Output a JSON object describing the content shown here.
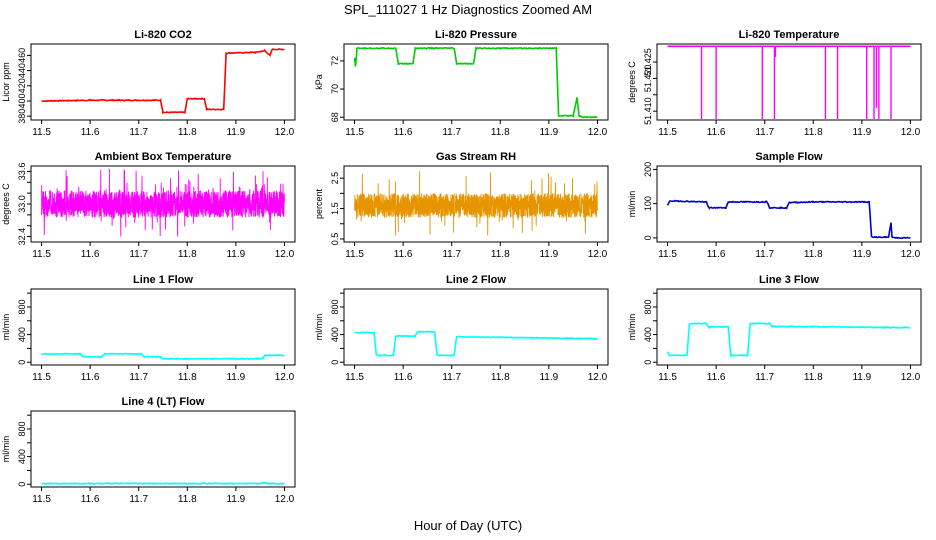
{
  "figure": {
    "title": "SPL_111027  1 Hz Diagnostics Zoomed AM",
    "xlabel": "Hour of Day (UTC)"
  },
  "chart_data": [
    {
      "type": "line",
      "title": "Li-820 CO2",
      "ylabel": "Licor ppm",
      "color": "#ff0000",
      "xlim": [
        11.5,
        12.0
      ],
      "ylim": [
        375,
        475
      ],
      "x_ticks": [
        11.5,
        11.6,
        11.7,
        11.8,
        11.9,
        12.0
      ],
      "y_ticks": [
        380,
        400,
        420,
        440,
        460
      ],
      "series": [
        {
          "points": [
            [
              11.5,
              400
            ],
            [
              11.6,
              401
            ],
            [
              11.66,
              401
            ],
            [
              11.745,
              401
            ],
            [
              11.75,
              385
            ],
            [
              11.795,
              385
            ],
            [
              11.8,
              403
            ],
            [
              11.835,
              403
            ],
            [
              11.84,
              389
            ],
            [
              11.875,
              389
            ],
            [
              11.88,
              463
            ],
            [
              11.94,
              464
            ],
            [
              11.96,
              466
            ],
            [
              11.97,
              460
            ],
            [
              11.975,
              468
            ],
            [
              12.0,
              468
            ]
          ]
        }
      ]
    },
    {
      "type": "line",
      "title": "Li-820 Pressure",
      "ylabel": "kPa",
      "color": "#00cc00",
      "xlim": [
        11.5,
        12.0
      ],
      "ylim": [
        67.8,
        73.2
      ],
      "x_ticks": [
        11.5,
        11.6,
        11.7,
        11.8,
        11.9,
        12.0
      ],
      "y_ticks": [
        68,
        70,
        72
      ],
      "series": [
        {
          "points": [
            [
              11.5,
              72.2
            ],
            [
              11.502,
              71.6
            ],
            [
              11.505,
              72.9
            ],
            [
              11.55,
              72.9
            ],
            [
              11.585,
              72.9
            ],
            [
              11.59,
              71.8
            ],
            [
              11.62,
              71.8
            ],
            [
              11.625,
              72.9
            ],
            [
              11.66,
              72.9
            ],
            [
              11.705,
              72.9
            ],
            [
              11.71,
              71.8
            ],
            [
              11.745,
              71.8
            ],
            [
              11.75,
              72.9
            ],
            [
              11.8,
              72.9
            ],
            [
              11.915,
              72.9
            ],
            [
              11.92,
              68.1
            ],
            [
              11.95,
              68.1
            ],
            [
              11.958,
              69.4
            ],
            [
              11.962,
              68.1
            ],
            [
              11.97,
              68.0
            ],
            [
              12.0,
              68.0
            ]
          ]
        }
      ]
    },
    {
      "type": "line",
      "title": "Li-820 Temperature",
      "ylabel": "degrees C",
      "color": "#ff00ff",
      "xlim": [
        11.5,
        12.0
      ],
      "ylim": [
        51.4073,
        51.4305
      ],
      "x_ticks": [
        11.5,
        11.6,
        11.7,
        11.8,
        11.9,
        12.0
      ],
      "y_ticks": [
        51.41,
        51.415,
        51.42,
        51.425
      ],
      "y_tick_labels": [
        "51.410",
        "",
        "51.420",
        "51.425"
      ],
      "series": [
        {
          "baseline": 51.4298,
          "drops": [
            [
              11.57,
              51.4075
            ],
            [
              11.6,
              51.4075
            ],
            [
              11.695,
              51.4075
            ],
            [
              11.72,
              51.4075
            ],
            [
              11.722,
              51.4265
            ],
            [
              11.825,
              51.4075
            ],
            [
              11.85,
              51.4075
            ],
            [
              11.91,
              51.4075
            ],
            [
              11.925,
              51.4075
            ],
            [
              11.93,
              51.411
            ],
            [
              11.935,
              51.4075
            ],
            [
              11.96,
              51.4075
            ]
          ]
        }
      ]
    },
    {
      "type": "line",
      "title": "Ambient Box Temperature",
      "ylabel": "degrees C",
      "color": "#ff00ff",
      "xlim": [
        11.5,
        12.0
      ],
      "ylim": [
        32.3,
        33.7
      ],
      "x_ticks": [
        11.5,
        11.6,
        11.7,
        11.8,
        11.9,
        12.0
      ],
      "y_ticks": [
        32.4,
        32.6,
        32.8,
        33.0,
        33.2,
        33.4,
        33.6
      ],
      "y_tick_labels": [
        "32.4",
        "",
        "",
        "33.0",
        "",
        "",
        "33.6"
      ],
      "series": [
        {
          "noise": {
            "center": 33.0,
            "low": 32.75,
            "high": 33.25,
            "min": 32.4,
            "max": 33.65
          }
        }
      ]
    },
    {
      "type": "line",
      "title": "Gas Stream RH",
      "ylabel": "percent",
      "color": "#e69500",
      "xlim": [
        11.5,
        12.0
      ],
      "ylim": [
        0.4,
        2.9
      ],
      "x_ticks": [
        11.5,
        11.6,
        11.7,
        11.8,
        11.9,
        12.0
      ],
      "y_ticks": [
        0.5,
        1.0,
        1.5,
        2.0,
        2.5
      ],
      "y_tick_labels": [
        "0.5",
        "",
        "1.5",
        "",
        "2.5"
      ],
      "series": [
        {
          "noise": {
            "center": 1.6,
            "low": 1.2,
            "high": 2.0,
            "min": 0.6,
            "max": 2.75
          }
        }
      ]
    },
    {
      "type": "line",
      "title": "Sample Flow",
      "ylabel": "ml/min",
      "color": "#0000cc",
      "xlim": [
        11.5,
        12.0
      ],
      "ylim": [
        -12,
        210
      ],
      "x_ticks": [
        11.5,
        11.6,
        11.7,
        11.8,
        11.9,
        12.0
      ],
      "y_ticks": [
        0,
        100,
        200
      ],
      "y_tick_labels": [
        "0",
        "100",
        "200"
      ],
      "series": [
        {
          "points": [
            [
              11.5,
              95
            ],
            [
              11.505,
              108
            ],
            [
              11.58,
              105
            ],
            [
              11.585,
              88
            ],
            [
              11.62,
              88
            ],
            [
              11.625,
              105
            ],
            [
              11.705,
              105
            ],
            [
              11.71,
              88
            ],
            [
              11.745,
              88
            ],
            [
              11.75,
              103
            ],
            [
              11.8,
              105
            ],
            [
              11.915,
              105
            ],
            [
              11.92,
              2
            ],
            [
              11.955,
              2
            ],
            [
              11.96,
              45
            ],
            [
              11.962,
              2
            ],
            [
              11.97,
              0
            ],
            [
              12.0,
              0
            ]
          ]
        }
      ]
    },
    {
      "type": "line",
      "title": "Line 1 Flow",
      "ylabel": "ml/min",
      "color": "#00ffff",
      "xlim": [
        11.5,
        12.0
      ],
      "ylim": [
        -40,
        1060
      ],
      "x_ticks": [
        11.5,
        11.6,
        11.7,
        11.8,
        11.9,
        12.0
      ],
      "y_ticks": [
        0,
        200,
        400,
        600,
        800,
        1000
      ],
      "y_tick_labels": [
        "0",
        "",
        "400",
        "",
        "800",
        ""
      ],
      "series": [
        {
          "points": [
            [
              11.5,
              120
            ],
            [
              11.58,
              120
            ],
            [
              11.585,
              80
            ],
            [
              11.625,
              80
            ],
            [
              11.63,
              120
            ],
            [
              11.705,
              120
            ],
            [
              11.71,
              80
            ],
            [
              11.745,
              80
            ],
            [
              11.75,
              50
            ],
            [
              11.955,
              50
            ],
            [
              11.96,
              100
            ],
            [
              12.0,
              100
            ]
          ]
        }
      ]
    },
    {
      "type": "line",
      "title": "Line 2 Flow",
      "ylabel": "ml/min",
      "color": "#00ffff",
      "xlim": [
        11.5,
        12.0
      ],
      "ylim": [
        -40,
        1060
      ],
      "x_ticks": [
        11.5,
        11.6,
        11.7,
        11.8,
        11.9,
        12.0
      ],
      "y_ticks": [
        0,
        200,
        400,
        600,
        800,
        1000
      ],
      "y_tick_labels": [
        "0",
        "",
        "400",
        "",
        "800",
        ""
      ],
      "series": [
        {
          "points": [
            [
              11.5,
              430
            ],
            [
              11.54,
              430
            ],
            [
              11.545,
              100
            ],
            [
              11.58,
              100
            ],
            [
              11.585,
              380
            ],
            [
              11.625,
              380
            ],
            [
              11.63,
              440
            ],
            [
              11.665,
              440
            ],
            [
              11.67,
              100
            ],
            [
              11.705,
              100
            ],
            [
              11.71,
              370
            ],
            [
              12.0,
              340
            ]
          ]
        }
      ]
    },
    {
      "type": "line",
      "title": "Line 3 Flow",
      "ylabel": "ml/min",
      "color": "#00ffff",
      "xlim": [
        11.5,
        12.0
      ],
      "ylim": [
        -40,
        1060
      ],
      "x_ticks": [
        11.5,
        11.6,
        11.7,
        11.8,
        11.9,
        12.0
      ],
      "y_ticks": [
        0,
        200,
        400,
        600,
        800,
        1000
      ],
      "y_tick_labels": [
        "0",
        "",
        "400",
        "",
        "800",
        ""
      ],
      "series": [
        {
          "points": [
            [
              11.5,
              150
            ],
            [
              11.503,
              100
            ],
            [
              11.54,
              100
            ],
            [
              11.545,
              560
            ],
            [
              11.58,
              560
            ],
            [
              11.585,
              510
            ],
            [
              11.625,
              510
            ],
            [
              11.63,
              100
            ],
            [
              11.665,
              100
            ],
            [
              11.67,
              560
            ],
            [
              11.71,
              560
            ],
            [
              11.715,
              520
            ],
            [
              12.0,
              500
            ]
          ]
        }
      ]
    },
    {
      "type": "line",
      "title": "Line 4 (LT) Flow",
      "ylabel": "ml/min",
      "color": "#00ffff",
      "xlim": [
        11.5,
        12.0
      ],
      "ylim": [
        -40,
        1060
      ],
      "x_ticks": [
        11.5,
        11.6,
        11.7,
        11.8,
        11.9,
        12.0
      ],
      "y_ticks": [
        0,
        200,
        400,
        600,
        800,
        1000
      ],
      "y_tick_labels": [
        "0",
        "",
        "400",
        "",
        "800",
        ""
      ],
      "series": [
        {
          "points": [
            [
              11.5,
              10
            ],
            [
              11.95,
              10
            ],
            [
              11.96,
              25
            ],
            [
              11.965,
              10
            ],
            [
              12.0,
              10
            ]
          ]
        }
      ]
    }
  ]
}
